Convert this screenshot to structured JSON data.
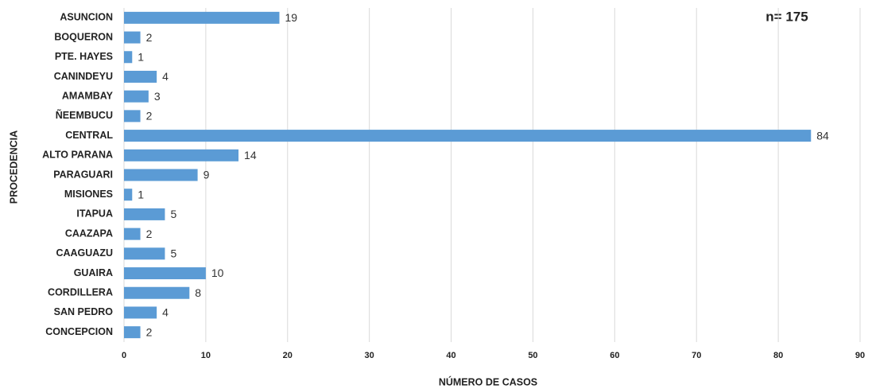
{
  "chart_data": {
    "type": "bar",
    "orientation": "horizontal",
    "x_label": "NÚMERO DE CASOS",
    "y_label": "PROCEDENCIA",
    "annotation": "n= 175",
    "categories": [
      "ASUNCION",
      "BOQUERON",
      "PTE. HAYES",
      "CANINDEYU",
      "AMAMBAY",
      "ÑEEMBUCU",
      "CENTRAL",
      "ALTO PARANA",
      "PARAGUARI",
      "MISIONES",
      "ITAPUA",
      "CAAZAPA",
      "CAAGUAZU",
      "GUAIRA",
      "CORDILLERA",
      "SAN PEDRO",
      "CONCEPCION"
    ],
    "values": [
      19,
      2,
      1,
      4,
      3,
      2,
      84,
      14,
      9,
      1,
      5,
      2,
      5,
      10,
      8,
      4,
      2
    ],
    "color": "#5b9bd5",
    "xlim": [
      0,
      90
    ],
    "xticks": [
      0,
      10,
      20,
      30,
      40,
      50,
      60,
      70,
      80,
      90
    ],
    "grid": true
  }
}
